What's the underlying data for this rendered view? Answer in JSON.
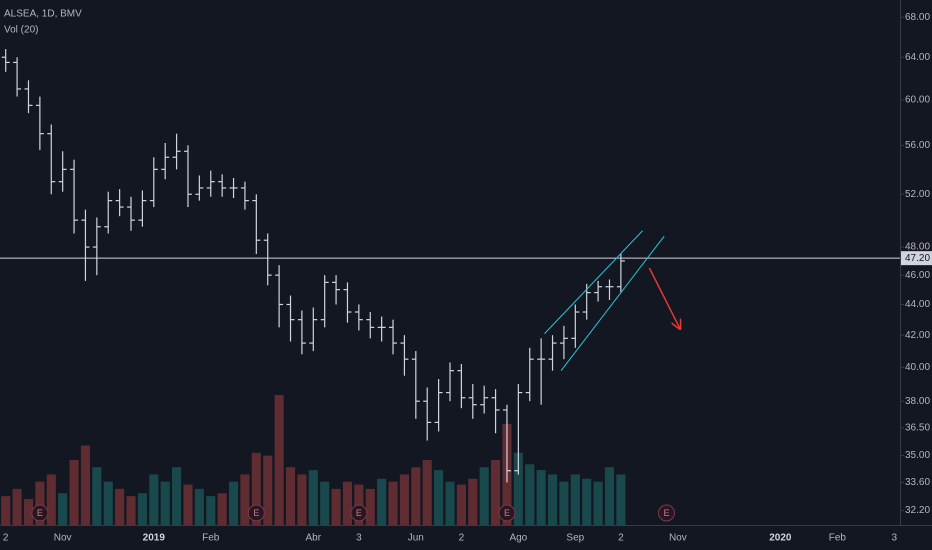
{
  "chart_data": {
    "type": "ohlc",
    "title": "ALSEA, 1D, BMV",
    "subtitle": "Vol (20)",
    "log_scale": true,
    "grid": false,
    "color": "#d1d4dc",
    "up_color": "#26a69a",
    "down_color": "#ef5350",
    "ylim": [
      31.5,
      69.8
    ],
    "yticks": [
      {
        "value": 68,
        "label": "68.00"
      },
      {
        "value": 64,
        "label": "64.00"
      },
      {
        "value": 60,
        "label": "60.00"
      },
      {
        "value": 56,
        "label": "56.00"
      },
      {
        "value": 52,
        "label": "52.00"
      },
      {
        "value": 48,
        "label": "48.00"
      },
      {
        "value": 46,
        "label": "46.00"
      },
      {
        "value": 44,
        "label": "44.00"
      },
      {
        "value": 42,
        "label": "42.00"
      },
      {
        "value": 40,
        "label": "40.00"
      },
      {
        "value": 38,
        "label": "38.00"
      },
      {
        "value": 36.5,
        "label": "36.50"
      },
      {
        "value": 35,
        "label": "35.00"
      },
      {
        "value": 33.6,
        "label": "33.60"
      },
      {
        "value": 32.2,
        "label": "32.20"
      }
    ],
    "categories": [
      "2",
      null,
      null,
      null,
      null,
      "Nov",
      null,
      null,
      null,
      null,
      null,
      null,
      null,
      "2019",
      null,
      null,
      null,
      null,
      "Feb",
      null,
      null,
      null,
      null,
      null,
      null,
      null,
      null,
      "Abr",
      null,
      null,
      null,
      "3",
      null,
      null,
      null,
      null,
      "Jun",
      null,
      null,
      null,
      "2",
      null,
      null,
      null,
      null,
      "Ago",
      null,
      null,
      null,
      null,
      "Sep",
      null,
      null,
      null,
      "2",
      null,
      null,
      null,
      null,
      "Nov",
      null,
      null,
      null,
      null,
      null,
      null,
      null,
      null,
      "2020",
      null,
      null,
      null,
      null,
      "Feb",
      null,
      null,
      null,
      null,
      "3"
    ],
    "bold_categories": [
      "2019",
      "2020"
    ],
    "open": [
      64,
      63.5,
      61,
      59.5,
      57,
      53,
      54,
      50,
      48,
      49.5,
      51.5,
      51,
      50,
      51.5,
      54,
      55,
      55.5,
      52,
      52.5,
      53,
      52.5,
      52.5,
      51.5,
      48.5,
      46,
      44,
      43,
      41.5,
      43,
      45.5,
      45,
      43.5,
      43,
      42.5,
      42.5,
      41.5,
      40.5,
      38,
      36.8,
      38.5,
      39.8,
      38.2,
      37.8,
      38.2,
      37.5,
      34.2,
      38.5,
      40.5,
      40.5,
      41.5,
      41.8,
      43.5,
      44.8,
      45.2,
      45.2,
      null,
      null,
      null,
      null,
      null,
      null,
      null,
      null,
      null,
      null,
      null,
      null,
      null,
      null,
      null,
      null,
      null,
      null,
      null,
      null,
      null,
      null,
      null,
      null
    ],
    "high": [
      64.8,
      64,
      61.8,
      60.3,
      57.8,
      55.5,
      54.8,
      50.8,
      50.2,
      52.2,
      52.4,
      51.8,
      52.3,
      55,
      56.2,
      57,
      56,
      53.5,
      53.9,
      53.6,
      53.3,
      53,
      52,
      49,
      46.7,
      44.6,
      43.6,
      43.8,
      46,
      46,
      45.5,
      44,
      43.5,
      43.2,
      43,
      42,
      41,
      38.8,
      39.3,
      40.3,
      40.2,
      39,
      38.9,
      38.7,
      37.8,
      39,
      41.2,
      41.8,
      42,
      42.6,
      44,
      45.4,
      45.6,
      45.7,
      47.5,
      null,
      null,
      null,
      null,
      null,
      null,
      null,
      null,
      null,
      null,
      null,
      null,
      null,
      null,
      null,
      null,
      null,
      null,
      null,
      null,
      null,
      null,
      null,
      null
    ],
    "low": [
      62.6,
      60.3,
      58.8,
      55.6,
      52,
      52.2,
      49,
      45.6,
      46,
      49,
      50.3,
      49.2,
      49.5,
      51,
      53.2,
      54,
      51,
      51.5,
      51.8,
      51.8,
      51.7,
      50.8,
      47.5,
      45.3,
      42.5,
      41.6,
      40.8,
      41,
      42.5,
      44,
      42.8,
      42.3,
      41.8,
      41.6,
      40.8,
      39.5,
      37,
      35.8,
      36.3,
      38,
      37.6,
      37,
      37.3,
      36.2,
      33.6,
      34,
      38,
      37.8,
      39.8,
      40.5,
      41.2,
      43,
      44.2,
      44.3,
      44.8,
      null,
      null,
      null,
      null,
      null,
      null,
      null,
      null,
      null,
      null,
      null,
      null,
      null,
      null,
      null,
      null,
      null,
      null,
      null,
      null,
      null,
      null,
      null,
      null
    ],
    "close": [
      63.5,
      61,
      59.5,
      57,
      53,
      54,
      50,
      48,
      49.5,
      51.5,
      51,
      50,
      51.5,
      54,
      55,
      55.5,
      52,
      52.5,
      53,
      52.5,
      52.5,
      51.5,
      48.5,
      46,
      44,
      43,
      41.5,
      43,
      45.5,
      45,
      43.5,
      43,
      42.5,
      42.5,
      41.5,
      40.5,
      38,
      36.8,
      38.5,
      39.8,
      38.2,
      37.8,
      38.2,
      37.5,
      34.2,
      38.5,
      40.5,
      40.5,
      41.5,
      41.8,
      43.5,
      44.8,
      45.2,
      45.2,
      47,
      null,
      null,
      null,
      null,
      null,
      null,
      null,
      null,
      null,
      null,
      null,
      null,
      null,
      null,
      null,
      null,
      null,
      null,
      null,
      null,
      null,
      null,
      null,
      null
    ],
    "volume": [
      20,
      25,
      18,
      30,
      35,
      22,
      45,
      55,
      40,
      30,
      25,
      20,
      22,
      35,
      30,
      40,
      28,
      25,
      20,
      22,
      30,
      35,
      50,
      48,
      90,
      40,
      35,
      38,
      30,
      25,
      30,
      28,
      25,
      32,
      30,
      35,
      40,
      45,
      38,
      30,
      28,
      32,
      40,
      45,
      70,
      50,
      42,
      38,
      35,
      30,
      35,
      32,
      30,
      40,
      35,
      null,
      null,
      null,
      null,
      null,
      null,
      null,
      null,
      null,
      null,
      null,
      null,
      null,
      null,
      null,
      null,
      null,
      null,
      null,
      null,
      null,
      null,
      null,
      null
    ],
    "price_line": {
      "value": 47.2,
      "label": "47.20",
      "color": "#d1d4dc"
    },
    "trend_lines": [
      {
        "color": "#26c6da",
        "x": [
          47.3,
          55.9
        ],
        "y": [
          42.1,
          49.2
        ]
      },
      {
        "color": "#26c6da",
        "x": [
          48.75,
          57.8
        ],
        "y": [
          39.8,
          48.8
        ]
      }
    ],
    "arrow": {
      "color": "#e53935",
      "x": [
        56.5,
        59.2
      ],
      "y": [
        46.5,
        42.4
      ]
    },
    "earnings": {
      "label": "E",
      "at": [
        3,
        22,
        31,
        44,
        58
      ]
    }
  }
}
